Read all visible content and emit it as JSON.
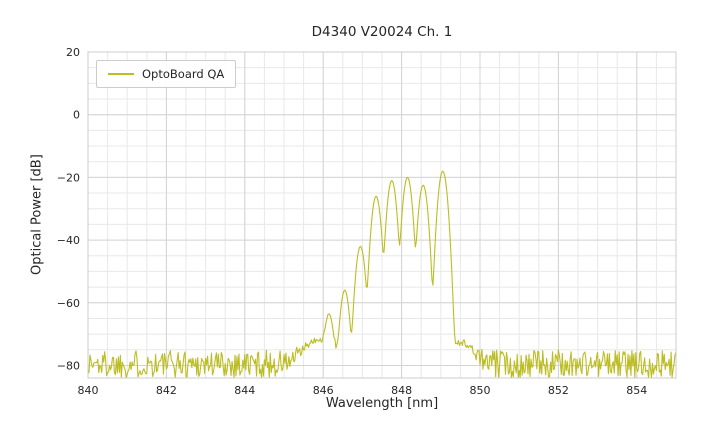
{
  "chart_data": {
    "type": "line",
    "title": "D4340 V20024 Ch. 1",
    "xlabel": "Wavelength [nm]",
    "ylabel": "Optical Power [dB]",
    "xlim": [
      840,
      855
    ],
    "ylim": [
      -84,
      20
    ],
    "xticks": [
      840,
      842,
      844,
      846,
      848,
      850,
      852,
      854
    ],
    "yticks": [
      20,
      0,
      -20,
      -40,
      -60,
      -80
    ],
    "grid": {
      "x_minor_step": 0.5,
      "y_minor_step": 5,
      "major_color": "#d4d4d4",
      "minor_color": "#e8e8e8",
      "spine_color": "#cccccc"
    },
    "legend": {
      "position": "upper left",
      "entries": [
        "OptoBoard QA"
      ]
    },
    "series": [
      {
        "name": "OptoBoard QA",
        "color": "#bcbd22",
        "noise_floor_db": -79.5,
        "noise_amplitude_db": 4.5,
        "seed": 1337,
        "mode_sigma_nm": 0.06,
        "sample_step_nm": 0.025,
        "modes": [
          {
            "center_nm": 845.9,
            "peak_db": -73,
            "sigma_nm": 0.3
          },
          {
            "center_nm": 846.15,
            "peak_db": -64
          },
          {
            "center_nm": 846.55,
            "peak_db": -56
          },
          {
            "center_nm": 846.95,
            "peak_db": -42
          },
          {
            "center_nm": 847.35,
            "peak_db": -26
          },
          {
            "center_nm": 847.75,
            "peak_db": -21
          },
          {
            "center_nm": 848.15,
            "peak_db": -20
          },
          {
            "center_nm": 848.55,
            "peak_db": -22.5
          },
          {
            "center_nm": 849.05,
            "peak_db": -18
          },
          {
            "center_nm": 849.5,
            "peak_db": -74,
            "sigma_nm": 0.25
          }
        ]
      }
    ]
  }
}
